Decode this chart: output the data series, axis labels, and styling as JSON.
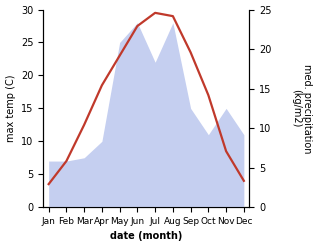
{
  "months": [
    "Jan",
    "Feb",
    "Mar",
    "Apr",
    "May",
    "Jun",
    "Jul",
    "Aug",
    "Sep",
    "Oct",
    "Nov",
    "Dec"
  ],
  "temperature": [
    3.5,
    7.0,
    12.5,
    18.5,
    23.0,
    27.5,
    29.5,
    29.0,
    23.5,
    17.0,
    8.5,
    4.0
  ],
  "precipitation": [
    7.0,
    7.0,
    7.5,
    10.0,
    25.0,
    28.0,
    22.0,
    28.0,
    15.0,
    11.0,
    15.0,
    11.0
  ],
  "temp_color": "#c0392b",
  "precip_color": "#c5cff0",
  "temp_ylim": [
    0,
    30
  ],
  "precip_ylim": [
    0,
    30
  ],
  "right_ylim": [
    0,
    25
  ],
  "right_yticks": [
    0,
    5,
    10,
    15,
    20,
    25
  ],
  "left_yticks": [
    0,
    5,
    10,
    15,
    20,
    25,
    30
  ],
  "ylabel_left": "max temp (C)",
  "ylabel_right": "med. precipitation\n(kg/m2)",
  "xlabel": "date (month)",
  "background_color": "#ffffff",
  "temp_linewidth": 1.6
}
